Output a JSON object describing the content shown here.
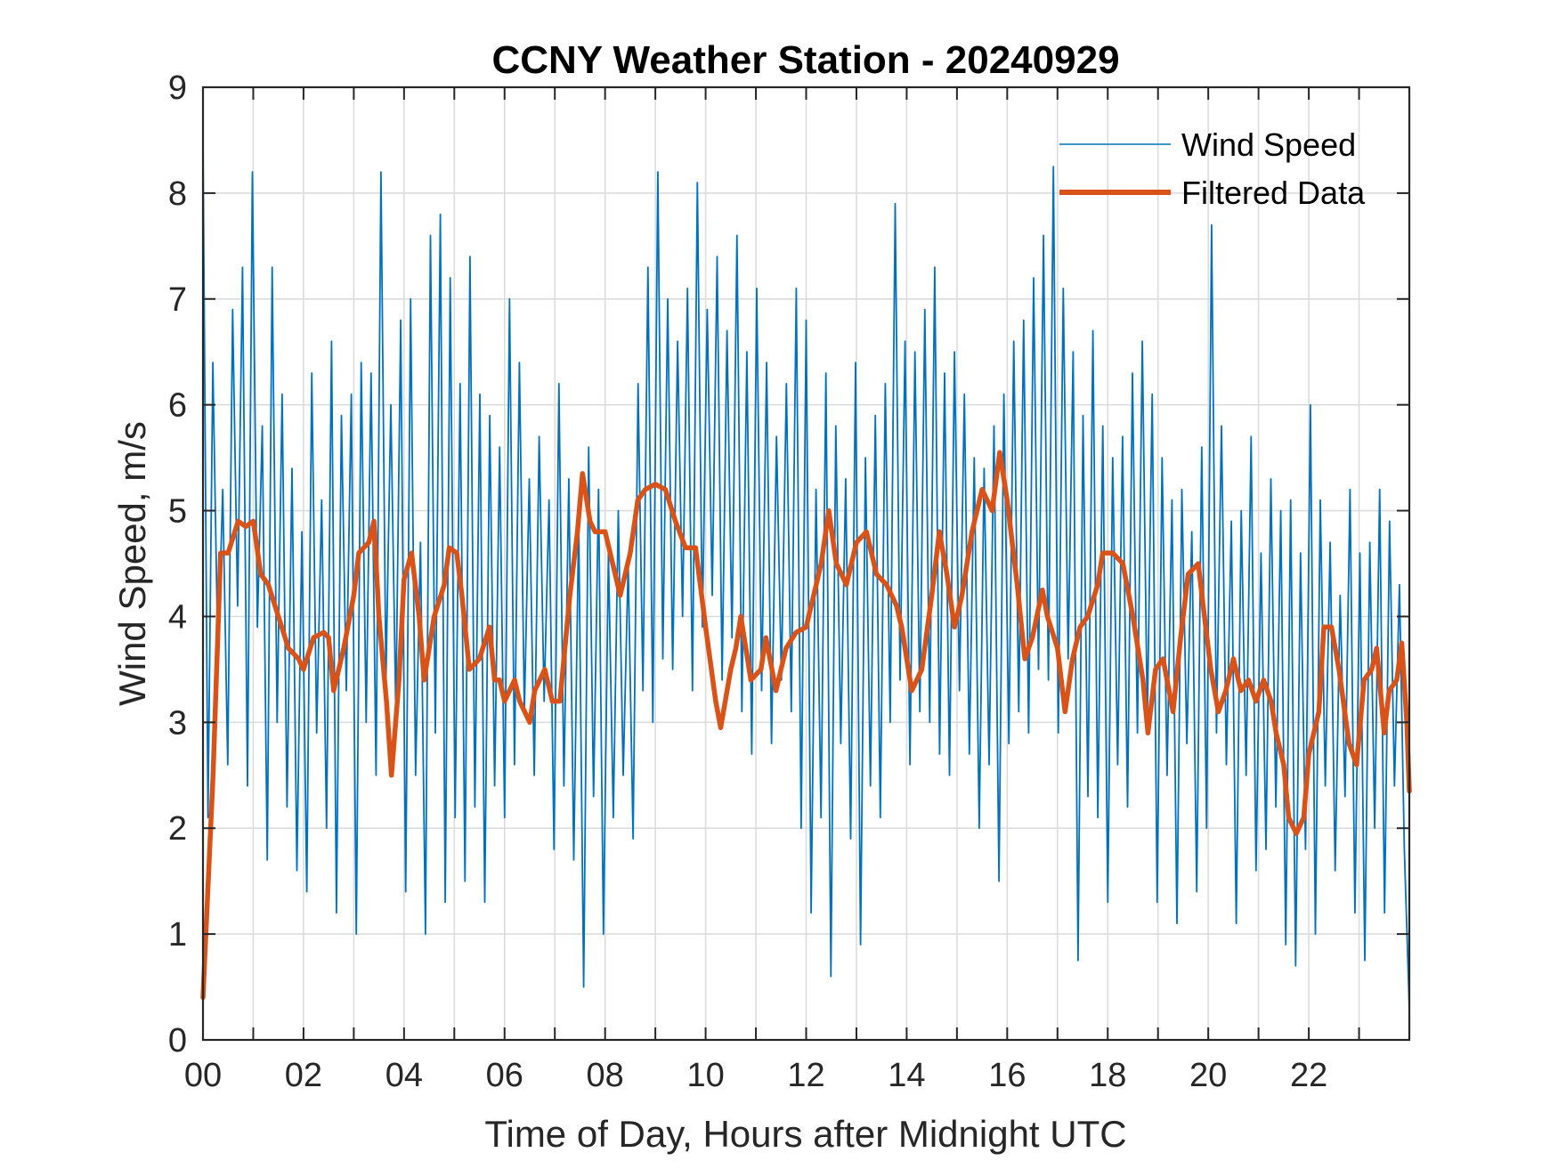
{
  "chart_data": {
    "type": "line",
    "title": "CCNY Weather Station - 20240929",
    "xlabel": "Time of Day, Hours after Midnight UTC",
    "ylabel": "Wind Speed, m/s",
    "xlim": [
      0,
      24
    ],
    "ylim": [
      0,
      9
    ],
    "grid": true,
    "legend_position": "top-right",
    "xticks": [
      0,
      2,
      4,
      6,
      8,
      10,
      12,
      14,
      16,
      18,
      20,
      22
    ],
    "xtick_labels": [
      "00",
      "02",
      "04",
      "06",
      "08",
      "10",
      "12",
      "14",
      "16",
      "18",
      "20",
      "22"
    ],
    "xminor_ticks_every_hours": 1,
    "yticks": [
      0,
      1,
      2,
      3,
      4,
      5,
      6,
      7,
      8,
      9
    ],
    "ytick_labels": [
      "0",
      "1",
      "2",
      "3",
      "4",
      "5",
      "6",
      "7",
      "8",
      "9"
    ],
    "series": [
      {
        "name": "Wind Speed",
        "color": "#0072BD",
        "x_step_hours": 0.0833,
        "values": [
          8.5,
          2.1,
          6.4,
          3.6,
          5.2,
          2.6,
          6.9,
          4.1,
          7.3,
          2.4,
          8.2,
          3.9,
          5.8,
          1.7,
          7.3,
          3.0,
          6.1,
          2.2,
          5.4,
          1.6,
          4.8,
          1.4,
          6.3,
          2.9,
          5.1,
          2.0,
          6.6,
          1.2,
          5.9,
          3.3,
          6.1,
          1.0,
          6.4,
          3.0,
          6.3,
          2.5,
          8.2,
          3.4,
          6.0,
          3.1,
          6.8,
          1.4,
          7.0,
          2.5,
          4.7,
          1.0,
          7.6,
          2.9,
          7.8,
          1.3,
          7.2,
          2.1,
          6.2,
          1.5,
          7.4,
          2.2,
          6.1,
          1.3,
          5.9,
          2.4,
          5.6,
          2.1,
          7.0,
          2.6,
          6.4,
          3.1,
          5.3,
          2.5,
          5.7,
          3.2,
          5.1,
          1.8,
          6.2,
          2.4,
          5.3,
          1.7,
          4.9,
          0.5,
          5.6,
          2.3,
          5.2,
          1.0,
          4.6,
          2.1,
          5.0,
          2.5,
          4.5,
          1.9,
          6.2,
          3.3,
          7.3,
          3.0,
          8.2,
          3.6,
          7.0,
          3.5,
          6.6,
          4.0,
          7.1,
          3.3,
          8.1,
          3.9,
          6.9,
          4.2,
          7.4,
          3.4,
          6.7,
          3.8,
          7.6,
          3.1,
          6.5,
          2.7,
          7.1,
          3.3,
          6.4,
          2.8,
          5.7,
          3.4,
          6.2,
          3.1,
          7.1,
          2.0,
          6.8,
          1.2,
          5.2,
          2.1,
          6.3,
          0.6,
          5.8,
          2.8,
          5.3,
          1.9,
          6.4,
          0.9,
          5.5,
          2.4,
          5.9,
          2.1,
          6.2,
          3.0,
          7.9,
          3.4,
          6.6,
          2.6,
          6.5,
          3.1,
          6.9,
          3.0,
          7.3,
          2.7,
          6.3,
          2.5,
          6.5,
          3.3,
          6.1,
          2.7,
          5.5,
          2.0,
          5.4,
          2.6,
          5.8,
          1.5,
          6.1,
          2.8,
          6.6,
          3.1,
          6.8,
          2.9,
          7.2,
          3.5,
          7.6,
          3.4,
          8.25,
          2.9,
          7.1,
          3.6,
          6.5,
          0.75,
          5.9,
          2.3,
          6.7,
          2.1,
          5.8,
          1.3,
          5.5,
          2.6,
          5.7,
          2.2,
          6.3,
          2.9,
          6.6,
          3.0,
          6.1,
          1.3,
          5.5,
          2.5,
          5.1,
          1.1,
          5.2,
          2.8,
          4.8,
          1.4,
          5.6,
          2.0,
          7.7,
          2.9,
          5.8,
          2.6,
          4.9,
          1.1,
          5.0,
          2.5,
          5.7,
          1.6,
          4.6,
          1.8,
          5.3,
          2.2,
          5.0,
          0.9,
          5.1,
          0.7,
          4.6,
          1.8,
          6.0,
          1.0,
          5.1,
          2.4,
          4.7,
          1.6,
          4.2,
          2.3,
          5.2,
          1.2,
          4.6,
          0.75,
          4.7,
          2.0,
          5.2,
          1.2,
          4.9,
          2.4,
          4.3,
          1.8,
          0.3
        ]
      },
      {
        "name": "Filtered Data",
        "color": "#D95319",
        "points": [
          [
            0.0,
            0.4
          ],
          [
            0.2,
            2.5
          ],
          [
            0.35,
            4.6
          ],
          [
            0.5,
            4.6
          ],
          [
            0.7,
            4.9
          ],
          [
            0.85,
            4.85
          ],
          [
            1.0,
            4.9
          ],
          [
            1.15,
            4.4
          ],
          [
            1.3,
            4.3
          ],
          [
            1.5,
            4.0
          ],
          [
            1.7,
            3.7
          ],
          [
            1.9,
            3.6
          ],
          [
            2.0,
            3.5
          ],
          [
            2.2,
            3.8
          ],
          [
            2.4,
            3.85
          ],
          [
            2.5,
            3.8
          ],
          [
            2.6,
            3.3
          ],
          [
            2.8,
            3.7
          ],
          [
            3.0,
            4.2
          ],
          [
            3.1,
            4.6
          ],
          [
            3.3,
            4.7
          ],
          [
            3.4,
            4.9
          ],
          [
            3.5,
            4.0
          ],
          [
            3.65,
            3.2
          ],
          [
            3.75,
            2.5
          ],
          [
            3.9,
            3.4
          ],
          [
            4.0,
            4.35
          ],
          [
            4.15,
            4.6
          ],
          [
            4.3,
            4.0
          ],
          [
            4.4,
            3.4
          ],
          [
            4.6,
            4.0
          ],
          [
            4.8,
            4.3
          ],
          [
            4.9,
            4.65
          ],
          [
            5.05,
            4.6
          ],
          [
            5.15,
            4.2
          ],
          [
            5.3,
            3.5
          ],
          [
            5.5,
            3.6
          ],
          [
            5.7,
            3.9
          ],
          [
            5.8,
            3.4
          ],
          [
            5.9,
            3.4
          ],
          [
            6.0,
            3.2
          ],
          [
            6.2,
            3.4
          ],
          [
            6.3,
            3.2
          ],
          [
            6.5,
            3.0
          ],
          [
            6.6,
            3.3
          ],
          [
            6.8,
            3.5
          ],
          [
            6.95,
            3.2
          ],
          [
            7.1,
            3.2
          ],
          [
            7.3,
            4.2
          ],
          [
            7.45,
            4.8
          ],
          [
            7.55,
            5.35
          ],
          [
            7.7,
            4.9
          ],
          [
            7.8,
            4.8
          ],
          [
            8.0,
            4.8
          ],
          [
            8.2,
            4.4
          ],
          [
            8.3,
            4.2
          ],
          [
            8.5,
            4.6
          ],
          [
            8.65,
            5.1
          ],
          [
            8.8,
            5.2
          ],
          [
            9.0,
            5.25
          ],
          [
            9.2,
            5.2
          ],
          [
            9.4,
            4.9
          ],
          [
            9.6,
            4.65
          ],
          [
            9.8,
            4.65
          ],
          [
            10.0,
            3.9
          ],
          [
            10.2,
            3.2
          ],
          [
            10.3,
            2.95
          ],
          [
            10.5,
            3.5
          ],
          [
            10.6,
            3.7
          ],
          [
            10.7,
            4.0
          ],
          [
            10.9,
            3.4
          ],
          [
            11.1,
            3.5
          ],
          [
            11.2,
            3.8
          ],
          [
            11.4,
            3.3
          ],
          [
            11.6,
            3.7
          ],
          [
            11.8,
            3.85
          ],
          [
            12.0,
            3.9
          ],
          [
            12.3,
            4.5
          ],
          [
            12.45,
            5.0
          ],
          [
            12.6,
            4.5
          ],
          [
            12.8,
            4.3
          ],
          [
            13.0,
            4.7
          ],
          [
            13.2,
            4.8
          ],
          [
            13.4,
            4.4
          ],
          [
            13.6,
            4.3
          ],
          [
            13.8,
            4.1
          ],
          [
            13.9,
            3.9
          ],
          [
            14.1,
            3.3
          ],
          [
            14.3,
            3.5
          ],
          [
            14.5,
            4.2
          ],
          [
            14.65,
            4.8
          ],
          [
            14.8,
            4.4
          ],
          [
            14.95,
            3.9
          ],
          [
            15.1,
            4.2
          ],
          [
            15.3,
            4.8
          ],
          [
            15.5,
            5.2
          ],
          [
            15.7,
            5.0
          ],
          [
            15.85,
            5.55
          ],
          [
            16.0,
            5.1
          ],
          [
            16.2,
            4.3
          ],
          [
            16.35,
            3.6
          ],
          [
            16.5,
            3.8
          ],
          [
            16.7,
            4.25
          ],
          [
            16.8,
            4.0
          ],
          [
            17.0,
            3.7
          ],
          [
            17.15,
            3.1
          ],
          [
            17.3,
            3.6
          ],
          [
            17.45,
            3.9
          ],
          [
            17.6,
            4.0
          ],
          [
            17.8,
            4.3
          ],
          [
            17.9,
            4.6
          ],
          [
            18.1,
            4.6
          ],
          [
            18.3,
            4.5
          ],
          [
            18.5,
            4.0
          ],
          [
            18.7,
            3.4
          ],
          [
            18.8,
            2.9
          ],
          [
            18.95,
            3.5
          ],
          [
            19.1,
            3.6
          ],
          [
            19.3,
            3.1
          ],
          [
            19.45,
            3.8
          ],
          [
            19.6,
            4.4
          ],
          [
            19.8,
            4.5
          ],
          [
            19.95,
            3.9
          ],
          [
            20.05,
            3.5
          ],
          [
            20.2,
            3.1
          ],
          [
            20.35,
            3.3
          ],
          [
            20.5,
            3.6
          ],
          [
            20.65,
            3.3
          ],
          [
            20.8,
            3.4
          ],
          [
            20.95,
            3.2
          ],
          [
            21.1,
            3.4
          ],
          [
            21.25,
            3.2
          ],
          [
            21.35,
            2.9
          ],
          [
            21.5,
            2.6
          ],
          [
            21.6,
            2.1
          ],
          [
            21.75,
            1.95
          ],
          [
            21.9,
            2.1
          ],
          [
            22.0,
            2.7
          ],
          [
            22.2,
            3.1
          ],
          [
            22.3,
            3.9
          ],
          [
            22.45,
            3.9
          ],
          [
            22.6,
            3.5
          ],
          [
            22.8,
            2.8
          ],
          [
            22.95,
            2.6
          ],
          [
            23.1,
            3.4
          ],
          [
            23.25,
            3.5
          ],
          [
            23.35,
            3.7
          ],
          [
            23.5,
            2.9
          ],
          [
            23.6,
            3.3
          ],
          [
            23.75,
            3.4
          ],
          [
            23.85,
            3.75
          ],
          [
            23.95,
            3.0
          ],
          [
            24.0,
            2.35
          ]
        ]
      }
    ]
  }
}
